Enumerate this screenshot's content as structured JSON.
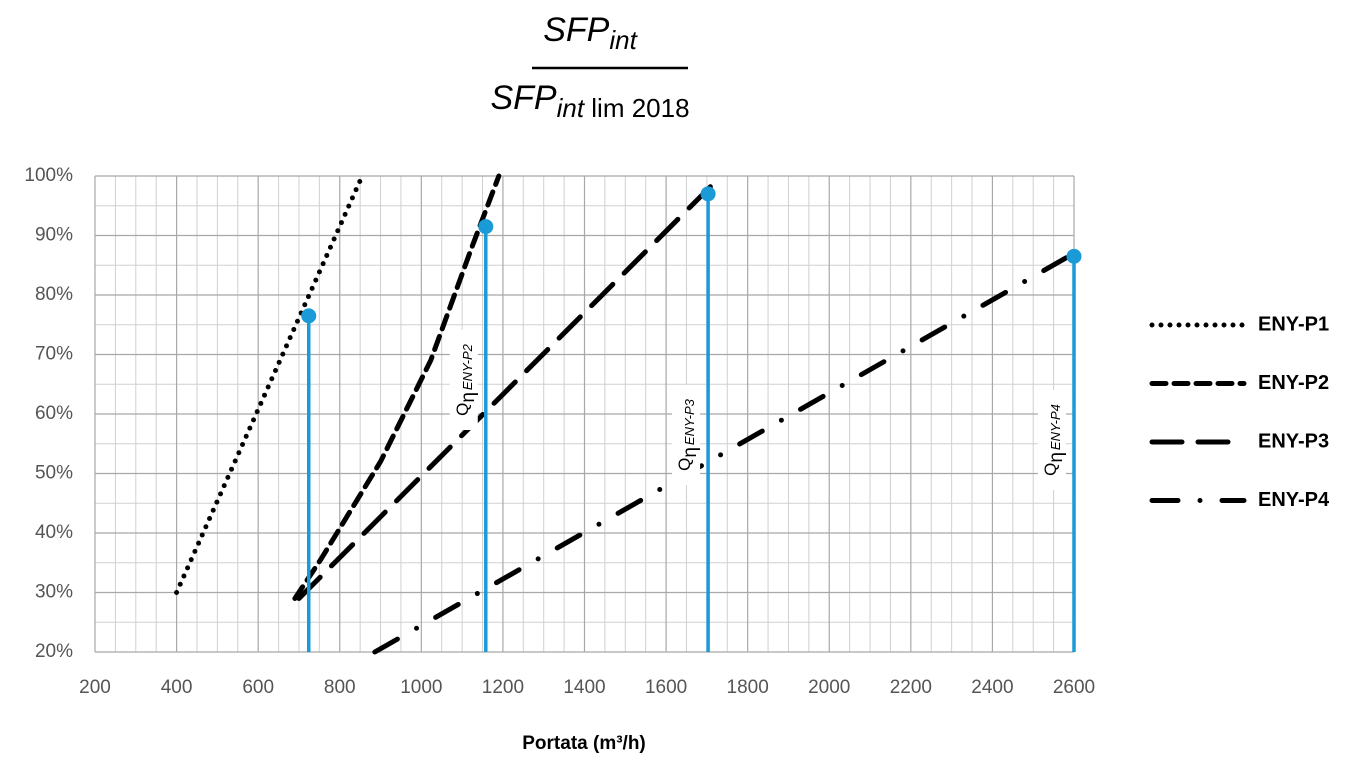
{
  "chart_data": {
    "type": "line",
    "title": {
      "numerator": "SFP",
      "numerator_subscript": "int",
      "denominator": "SFP",
      "denominator_subscript": "int",
      "denominator_suffix": " lim 2018"
    },
    "xlabel": "Portata (m³/h)",
    "xlim": [
      200,
      2600
    ],
    "ylim": [
      20,
      100
    ],
    "xticks": [
      200,
      400,
      600,
      800,
      1000,
      1200,
      1400,
      1600,
      1800,
      2000,
      2200,
      2400,
      2600
    ],
    "yticks": [
      {
        "value": 20,
        "label": "20%"
      },
      {
        "value": 30,
        "label": "30%"
      },
      {
        "value": 40,
        "label": "40%"
      },
      {
        "value": 50,
        "label": "50%"
      },
      {
        "value": 60,
        "label": "60%"
      },
      {
        "value": 70,
        "label": "70%"
      },
      {
        "value": 80,
        "label": "80%"
      },
      {
        "value": 90,
        "label": "90%"
      },
      {
        "value": 100,
        "label": "100%"
      }
    ],
    "grid": true,
    "legend": "right",
    "series": [
      {
        "name": "ENY-P1",
        "color": "#000000",
        "linestyle": "dotted",
        "x": [
          400,
          855
        ],
        "values": [
          30,
          100
        ]
      },
      {
        "name": "ENY-P2",
        "color": "#000000",
        "linestyle": "dashed",
        "x": [
          690,
          753,
          900,
          1023,
          1121,
          1190
        ],
        "values": [
          29,
          35.5,
          52,
          69,
          87.5,
          100
        ]
      },
      {
        "name": "ENY-P3",
        "color": "#000000",
        "linestyle": "long-dashed",
        "x": [
          700,
          1735
        ],
        "values": [
          29,
          100
        ]
      },
      {
        "name": "ENY-P4",
        "color": "#000000",
        "linestyle": "dash-dot",
        "x": [
          886,
          2600
        ],
        "values": [
          20,
          87
        ]
      }
    ],
    "markers": {
      "color": "#1a9bd7",
      "x": [
        724,
        1158,
        1703,
        2600
      ],
      "values": [
        76.5,
        91.5,
        97,
        86.5
      ],
      "label_symbol": "Q",
      "label_greek": "η",
      "labels": [
        null,
        "ENY-P2",
        "ENY-P3",
        "ENY-P4"
      ]
    }
  }
}
